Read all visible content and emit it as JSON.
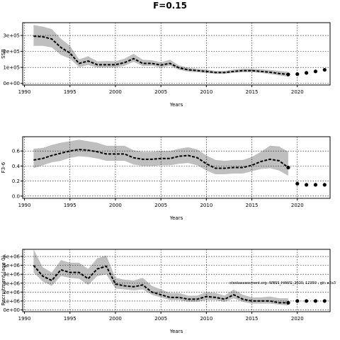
{
  "title": "F=0.15",
  "colors": {
    "band": "#bfbfbf",
    "line": "#000000",
    "grid": "#000000"
  },
  "watermark": "stockassessment.org: WBSS_HAWG_2020, 12350 , git: e2a3",
  "chart_data": [
    {
      "type": "line",
      "ylabel": "SSB",
      "xlabel": "Years",
      "xlim": [
        1989.8,
        2023.6
      ],
      "ylim": [
        -10000,
        380000
      ],
      "xticks": [
        1990,
        1995,
        2000,
        2005,
        2010,
        2015,
        2020
      ],
      "yticks": [
        0,
        100000,
        200000,
        300000
      ],
      "yticklabels": [
        "0e+00",
        "1e+05",
        "2e+05",
        "3e+05"
      ],
      "grid": true,
      "years": [
        1991,
        1992,
        1993,
        1994,
        1995,
        1996,
        1997,
        1998,
        1999,
        2000,
        2001,
        2002,
        2003,
        2004,
        2005,
        2006,
        2007,
        2008,
        2009,
        2010,
        2011,
        2012,
        2013,
        2014,
        2015,
        2016,
        2017,
        2018,
        2019
      ],
      "estimate": [
        295000,
        292000,
        278000,
        225000,
        190000,
        125000,
        140000,
        117000,
        117000,
        117000,
        130000,
        155000,
        125000,
        125000,
        115000,
        125000,
        97000,
        85000,
        80000,
        75000,
        68000,
        68000,
        75000,
        80000,
        80000,
        75000,
        70000,
        62000,
        56000
      ],
      "lower": [
        235000,
        235000,
        225000,
        178000,
        155000,
        102000,
        115000,
        100000,
        100000,
        100000,
        110000,
        135000,
        108000,
        110000,
        100000,
        110000,
        85000,
        73000,
        70000,
        65000,
        60000,
        60000,
        66000,
        70000,
        70000,
        66000,
        58000,
        50000,
        42000
      ],
      "upper": [
        365000,
        355000,
        340000,
        280000,
        235000,
        150000,
        170000,
        138000,
        140000,
        138000,
        155000,
        185000,
        148000,
        145000,
        132000,
        148000,
        112000,
        98000,
        92000,
        87000,
        78000,
        78000,
        87000,
        92000,
        92000,
        88000,
        84000,
        78000,
        72000
      ],
      "forecast": {
        "years": [
          2019,
          2020,
          2021,
          2022,
          2023
        ],
        "values": [
          56000,
          58000,
          66000,
          75000,
          85000
        ]
      }
    },
    {
      "type": "line",
      "ylabel": "F3-6",
      "xlabel": "Years",
      "xlim": [
        1989.8,
        2023.6
      ],
      "ylim": [
        -0.03,
        0.79
      ],
      "xticks": [
        1990,
        1995,
        2000,
        2005,
        2010,
        2015,
        2020
      ],
      "yticks": [
        0.0,
        0.2,
        0.4,
        0.6
      ],
      "yticklabels": [
        "0.0",
        "0.2",
        "0.4",
        "0.6"
      ],
      "grid": true,
      "years": [
        1991,
        1992,
        1993,
        1994,
        1995,
        1996,
        1997,
        1998,
        1999,
        2000,
        2001,
        2002,
        2003,
        2004,
        2005,
        2006,
        2007,
        2008,
        2009,
        2010,
        2011,
        2012,
        2013,
        2014,
        2015,
        2016,
        2017,
        2018,
        2019
      ],
      "estimate": [
        0.48,
        0.5,
        0.54,
        0.57,
        0.6,
        0.62,
        0.61,
        0.59,
        0.56,
        0.56,
        0.56,
        0.51,
        0.49,
        0.49,
        0.5,
        0.5,
        0.53,
        0.54,
        0.51,
        0.43,
        0.37,
        0.37,
        0.38,
        0.38,
        0.41,
        0.46,
        0.49,
        0.47,
        0.38
      ],
      "lower": [
        0.37,
        0.41,
        0.45,
        0.47,
        0.51,
        0.53,
        0.52,
        0.5,
        0.47,
        0.47,
        0.47,
        0.42,
        0.4,
        0.4,
        0.41,
        0.41,
        0.43,
        0.44,
        0.41,
        0.34,
        0.29,
        0.29,
        0.3,
        0.3,
        0.33,
        0.36,
        0.37,
        0.34,
        0.27
      ],
      "upper": [
        0.63,
        0.64,
        0.68,
        0.71,
        0.73,
        0.75,
        0.73,
        0.71,
        0.67,
        0.67,
        0.67,
        0.61,
        0.59,
        0.59,
        0.6,
        0.6,
        0.63,
        0.65,
        0.62,
        0.54,
        0.48,
        0.47,
        0.48,
        0.48,
        0.52,
        0.59,
        0.67,
        0.66,
        0.59
      ],
      "forecast": {
        "years": [
          2019,
          2020,
          2021,
          2022,
          2023
        ],
        "values": [
          0.38,
          0.165,
          0.15,
          0.15,
          0.15
        ]
      }
    },
    {
      "type": "line",
      "ylabel": "Recruitment (age 0)",
      "xlabel": "Years",
      "xlim": [
        1989.8,
        2023.6
      ],
      "ylim": [
        -200000,
        6800000
      ],
      "xticks": [
        1990,
        1995,
        2000,
        2005,
        2010,
        2015,
        2020
      ],
      "yticks": [
        0,
        1000000,
        2000000,
        3000000,
        4000000,
        5000000,
        6000000
      ],
      "yticklabels": [
        "0e+00",
        "1e+06",
        "2e+06",
        "3e+06",
        "4e+06",
        "5e+06",
        "6e+06"
      ],
      "grid": true,
      "years": [
        1991,
        1992,
        1993,
        1994,
        1995,
        1996,
        1997,
        1998,
        1999,
        2000,
        2001,
        2002,
        2003,
        2004,
        2005,
        2006,
        2007,
        2008,
        2009,
        2010,
        2011,
        2012,
        2013,
        2014,
        2015,
        2016,
        2017,
        2018,
        2019
      ],
      "estimate": [
        5000000,
        3800000,
        3300000,
        4500000,
        4200000,
        4200000,
        3500000,
        4600000,
        4900000,
        2900000,
        2700000,
        2600000,
        2800000,
        2000000,
        1700000,
        1400000,
        1400000,
        1200000,
        1200000,
        1500000,
        1400000,
        1200000,
        1700000,
        1200000,
        1000000,
        1000000,
        1000000,
        800000,
        800000
      ],
      "lower": [
        4200000,
        3200000,
        2700000,
        3800000,
        3600000,
        3500000,
        2800000,
        3800000,
        4000000,
        2400000,
        2300000,
        2200000,
        2300000,
        1700000,
        1400000,
        1100000,
        1100000,
        900000,
        900000,
        1100000,
        1100000,
        900000,
        1300000,
        900000,
        700000,
        700000,
        700000,
        600000,
        500000
      ],
      "upper": [
        6800000,
        4800000,
        4200000,
        5600000,
        5300000,
        5300000,
        4600000,
        5800000,
        6100000,
        3600000,
        3400000,
        3300000,
        3600000,
        2700000,
        2300000,
        1900000,
        1900000,
        1600000,
        1600000,
        2000000,
        1900000,
        1600000,
        2300000,
        1700000,
        1400000,
        1400000,
        1500000,
        1300000,
        1300000
      ],
      "forecast": {
        "years": [
          2019,
          2020,
          2021,
          2022,
          2023
        ],
        "values": [
          800000,
          1000000,
          1000000,
          1000000,
          1000000
        ]
      }
    }
  ]
}
